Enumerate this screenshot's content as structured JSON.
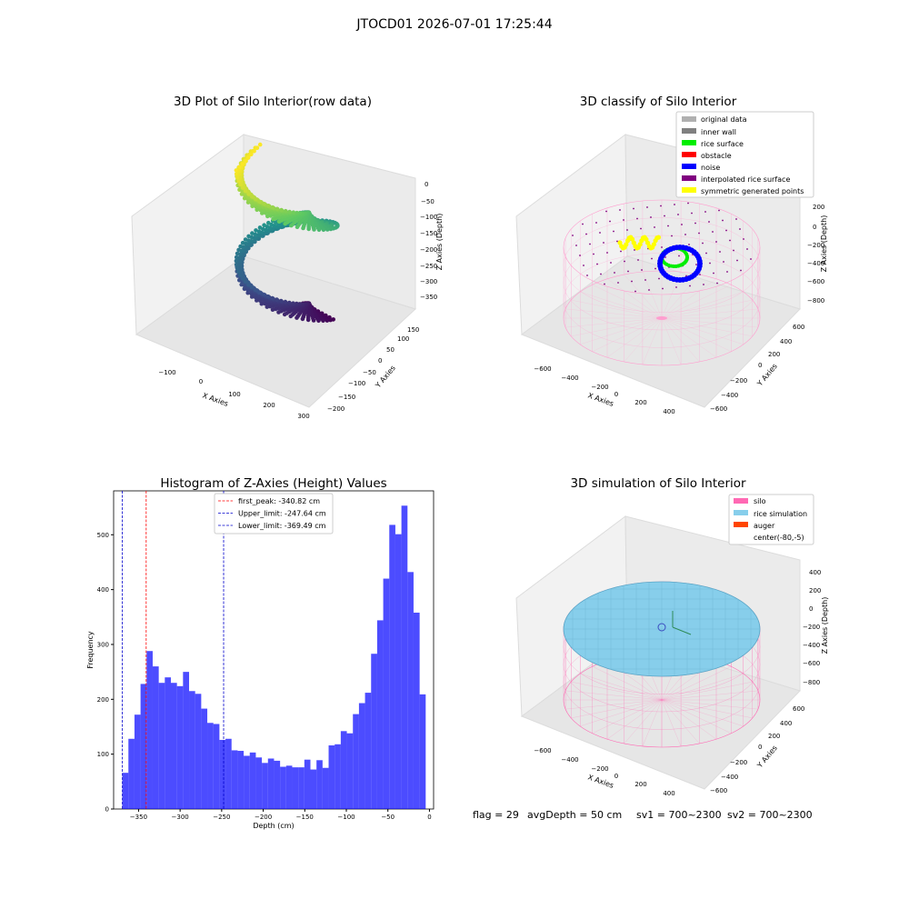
{
  "figure": {
    "suptitle": "JTOCD01 2026-07-01 17:25:44"
  },
  "panel1": {
    "title": "3D Plot of Silo Interior(row data)",
    "xlabel": "X Axies",
    "ylabel": "Y Axies",
    "zlabel": "Z Axies (Depth)",
    "xticks": [
      "−100",
      "0",
      "100",
      "200",
      "300"
    ],
    "yticks": [
      "150",
      "100",
      "50",
      "0",
      "−50",
      "−100",
      "−150",
      "−200"
    ],
    "zticks": [
      "0",
      "−50",
      "−100",
      "−150",
      "−200",
      "−250",
      "−300",
      "−350"
    ]
  },
  "panel2": {
    "title": "3D classify of Silo Interior",
    "xlabel": "X Axies",
    "ylabel": "Y Axies",
    "zlabel": "Z Axies (Depth)",
    "xticks": [
      "−600",
      "−400",
      "−200",
      "0",
      "200",
      "400"
    ],
    "yticks": [
      "600",
      "400",
      "200",
      "0",
      "−200",
      "−400",
      "−600"
    ],
    "zticks": [
      "200",
      "0",
      "−200",
      "−400",
      "−600",
      "−800"
    ],
    "legend": [
      {
        "label": "original data",
        "color": "#b0b0b0"
      },
      {
        "label": "inner wall",
        "color": "#808080"
      },
      {
        "label": "rice surface",
        "color": "#00ee00"
      },
      {
        "label": "obstacle",
        "color": "#ff0000"
      },
      {
        "label": "noise",
        "color": "#0000ff"
      },
      {
        "label": "interpolated rice surface",
        "color": "#800080"
      },
      {
        "label": "symmetric generated points",
        "color": "#ffff00"
      }
    ]
  },
  "panel4": {
    "title": "3D simulation of Silo Interior",
    "xlabel": "X Axies",
    "ylabel": "Y Axies",
    "zlabel": "Z Axies (Depth)",
    "xticks": [
      "−600",
      "−400",
      "−200",
      "0",
      "200",
      "400"
    ],
    "yticks": [
      "600",
      "400",
      "200",
      "0",
      "−200",
      "−400",
      "−600"
    ],
    "zticks": [
      "400",
      "200",
      "0",
      "−200",
      "−400",
      "−600",
      "−800"
    ],
    "legend": [
      {
        "label": "silo",
        "color": "#ff69b4"
      },
      {
        "label": "rice simulation",
        "color": "#87ceeb"
      },
      {
        "label": "auger",
        "color": "#ff4500"
      },
      {
        "label": "center(-80,-5)",
        "color": "#ffffff"
      }
    ]
  },
  "status": {
    "flag": "flag = 29",
    "avg": "avgDepth = 50 cm",
    "sv1": "sv1 = 700~2300",
    "sv2": "sv2 = 700~2300"
  },
  "chart_data": [
    {
      "type": "bar",
      "title": "Histogram of Z-Axies (Height) Values",
      "xlabel": "Depth (cm)",
      "ylabel": "Frequency",
      "xlim": [
        -380,
        5
      ],
      "ylim": [
        0,
        580
      ],
      "xticks": [
        -350,
        -300,
        -250,
        -200,
        -150,
        -100,
        -50,
        0
      ],
      "xtick_labels": [
        "−350",
        "−300",
        "−250",
        "−200",
        "−150",
        "−100",
        "−50",
        "0"
      ],
      "yticks": [
        0,
        100,
        200,
        300,
        400,
        500
      ],
      "bin_start": -369.5,
      "bin_width": 7.3,
      "values": [
        66,
        128,
        172,
        228,
        288,
        260,
        230,
        240,
        230,
        224,
        250,
        215,
        210,
        183,
        157,
        155,
        126,
        128,
        107,
        106,
        97,
        103,
        94,
        84,
        92,
        88,
        77,
        79,
        76,
        76,
        90,
        72,
        89,
        75,
        116,
        118,
        142,
        138,
        173,
        193,
        212,
        283,
        344,
        420,
        518,
        501,
        553,
        432,
        358,
        209
      ],
      "color": "#0000ff",
      "lines": [
        {
          "label": "first_peak: -340.82 cm",
          "x": -340.82,
          "color": "#ff0000"
        },
        {
          "label": "Upper_limit: -247.64 cm",
          "x": -247.64,
          "color": "#0000cc"
        },
        {
          "label": "Lower_limit: -369.49 cm",
          "x": -369.49,
          "color": "#0000cc"
        }
      ]
    }
  ]
}
